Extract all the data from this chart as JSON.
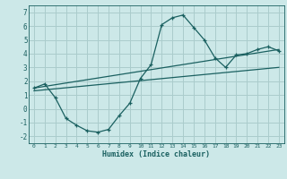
{
  "bg_color": "#cce8e8",
  "grid_color": "#aacccc",
  "line_color": "#1a6060",
  "xlabel": "Humidex (Indice chaleur)",
  "xlim": [
    -0.5,
    23.5
  ],
  "ylim": [
    -2.5,
    7.5
  ],
  "yticks": [
    -2,
    -1,
    0,
    1,
    2,
    3,
    4,
    5,
    6,
    7
  ],
  "xticks": [
    0,
    1,
    2,
    3,
    4,
    5,
    6,
    7,
    8,
    9,
    10,
    11,
    12,
    13,
    14,
    15,
    16,
    17,
    18,
    19,
    20,
    21,
    22,
    23
  ],
  "curve1_x": [
    0,
    1,
    2,
    3,
    4,
    5,
    6,
    7,
    8,
    9,
    10,
    11,
    12,
    13,
    14,
    15,
    16,
    17,
    18,
    19,
    20,
    21,
    22,
    23
  ],
  "curve1_y": [
    1.5,
    1.8,
    0.8,
    -0.7,
    -1.2,
    -1.6,
    -1.7,
    -1.5,
    -0.5,
    0.4,
    2.2,
    3.2,
    6.1,
    6.6,
    6.8,
    5.9,
    5.0,
    3.7,
    3.0,
    3.9,
    4.0,
    4.3,
    4.5,
    4.2
  ],
  "curve2_x": [
    0,
    23
  ],
  "curve2_y": [
    1.5,
    4.3
  ],
  "curve3_x": [
    0,
    23
  ],
  "curve3_y": [
    1.3,
    3.0
  ]
}
